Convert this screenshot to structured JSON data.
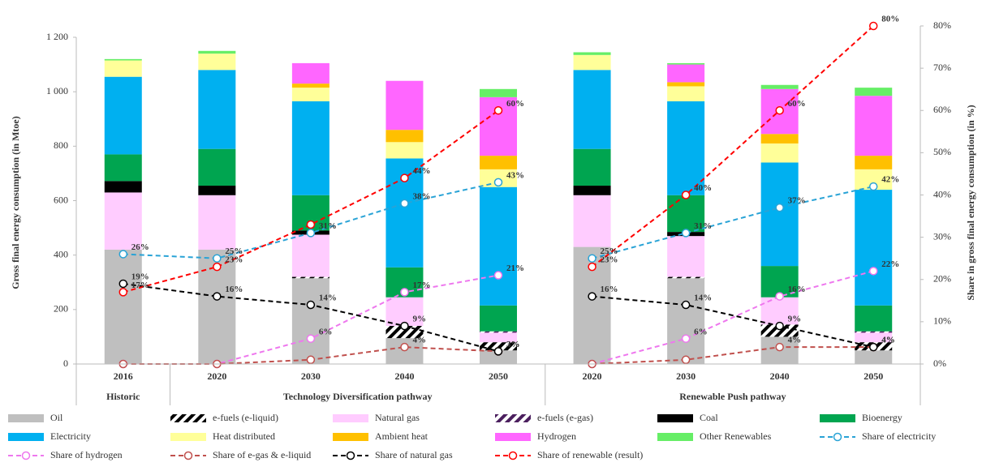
{
  "chart_data": {
    "type": "bar",
    "stacked": true,
    "y_label": "Gross final energy consumption (in Mtoe)",
    "y2_label": "Share in gross final energy consumption (in %)",
    "groups": [
      {
        "name": "Historic",
        "categories": [
          "2016"
        ]
      },
      {
        "name": "Technology Diversification pathway",
        "categories": [
          "2020",
          "2030",
          "2040",
          "2050"
        ]
      },
      {
        "name": "Renewable Push pathway",
        "categories": [
          "2020",
          "2030",
          "2040",
          "2050"
        ]
      }
    ],
    "ylim": [
      0,
      1200
    ],
    "yticks": [
      0,
      200,
      400,
      600,
      800,
      {
        "value": 1000,
        "label": "1 000"
      },
      {
        "value": 1200,
        "label": "1 200"
      }
    ],
    "y2lim": [
      0,
      80
    ],
    "y2ticks": [
      {
        "value": 0,
        "label": "0%"
      },
      {
        "value": 10,
        "label": "10%"
      },
      {
        "value": 20,
        "label": "20%"
      },
      {
        "value": 30,
        "label": "30%"
      },
      {
        "value": 40,
        "label": "40%"
      },
      {
        "value": 50,
        "label": "50%"
      },
      {
        "value": 60,
        "label": "60%"
      },
      {
        "value": 70,
        "label": "70%"
      },
      {
        "value": 80,
        "label": "80%"
      }
    ],
    "legend": "bottom",
    "series": [
      {
        "name": "Oil",
        "color": "#bfbfbf",
        "values": [
          420,
          420,
          315,
          95,
          50,
          430,
          315,
          100,
          50
        ]
      },
      {
        "name": "e-fuels (e-liquid)",
        "color": "#000000",
        "pattern": "hatch",
        "values": [
          0,
          0,
          5,
          45,
          30,
          0,
          5,
          45,
          30
        ]
      },
      {
        "name": "Natural gas",
        "color": "#ffccff",
        "values": [
          210,
          200,
          155,
          105,
          35,
          190,
          150,
          100,
          35
        ]
      },
      {
        "name": "e-fuels (e-gas)",
        "color": "#4b1f5e",
        "pattern": "hatch",
        "values": [
          0,
          0,
          0,
          0,
          5,
          0,
          0,
          0,
          5
        ]
      },
      {
        "name": "Coal",
        "color": "#000000",
        "values": [
          42,
          35,
          15,
          0,
          0,
          35,
          15,
          0,
          0
        ]
      },
      {
        "name": "Bioenergy",
        "color": "#00a550",
        "values": [
          98,
          135,
          130,
          110,
          95,
          135,
          135,
          115,
          95
        ]
      },
      {
        "name": "Electricity",
        "color": "#00b0f0",
        "values": [
          285,
          290,
          345,
          400,
          435,
          290,
          345,
          380,
          425
        ]
      },
      {
        "name": "Heat distributed",
        "color": "#ffff99",
        "values": [
          60,
          60,
          50,
          60,
          65,
          55,
          55,
          70,
          75
        ]
      },
      {
        "name": "Ambient heat",
        "color": "#ffc000",
        "values": [
          0,
          0,
          15,
          45,
          50,
          0,
          15,
          35,
          50
        ]
      },
      {
        "name": "Hydrogen",
        "color": "#ff66ff",
        "values": [
          0,
          0,
          75,
          180,
          215,
          0,
          65,
          165,
          220
        ]
      },
      {
        "name": "Other Renewables",
        "color": "#66ee66",
        "values": [
          5,
          10,
          0,
          0,
          30,
          10,
          5,
          15,
          30
        ]
      },
      {
        "name": "Share of electricity",
        "type": "line",
        "axis": "y2",
        "color": "#29a3d6",
        "values": [
          26,
          25,
          31,
          38,
          43,
          25,
          31,
          37,
          42
        ],
        "value_labels": [
          "26%",
          "25%",
          "31%",
          "38%",
          "43%",
          "25%",
          "31%",
          "37%",
          "42%"
        ]
      },
      {
        "name": "Share of hydrogen",
        "type": "line",
        "axis": "y2",
        "color": "#ee77ee",
        "values": [
          0,
          0,
          6,
          17,
          21,
          0,
          6,
          16,
          22
        ],
        "value_labels": [
          null,
          null,
          "6%",
          "17%",
          "21%",
          null,
          "6%",
          "16%",
          "22%"
        ]
      },
      {
        "name": "Share of e-gas & e-liquid",
        "type": "line",
        "axis": "y2",
        "color": "#c0504d",
        "values": [
          0,
          0,
          1,
          4,
          3,
          0,
          1,
          4,
          4
        ],
        "value_labels": [
          null,
          null,
          null,
          "4%",
          "3%",
          null,
          null,
          "4%",
          "4%"
        ]
      },
      {
        "name": "Share of natural gas",
        "type": "line",
        "axis": "y2",
        "color": "#000000",
        "values": [
          19,
          16,
          14,
          9,
          3,
          16,
          14,
          9,
          4
        ],
        "value_labels": [
          "19%",
          "16%",
          "14%",
          "9%",
          "3%",
          "16%",
          "14%",
          "9%",
          "4%"
        ]
      },
      {
        "name": "Share of renewable (result)",
        "type": "line",
        "axis": "y2",
        "color": "#ff0000",
        "values": [
          17,
          23,
          33,
          44,
          60,
          23,
          40,
          60,
          80
        ],
        "value_labels": [
          "17%",
          "23%",
          null,
          "44%",
          "60%",
          "23%",
          "40%",
          "60%",
          "80%"
        ]
      }
    ]
  }
}
